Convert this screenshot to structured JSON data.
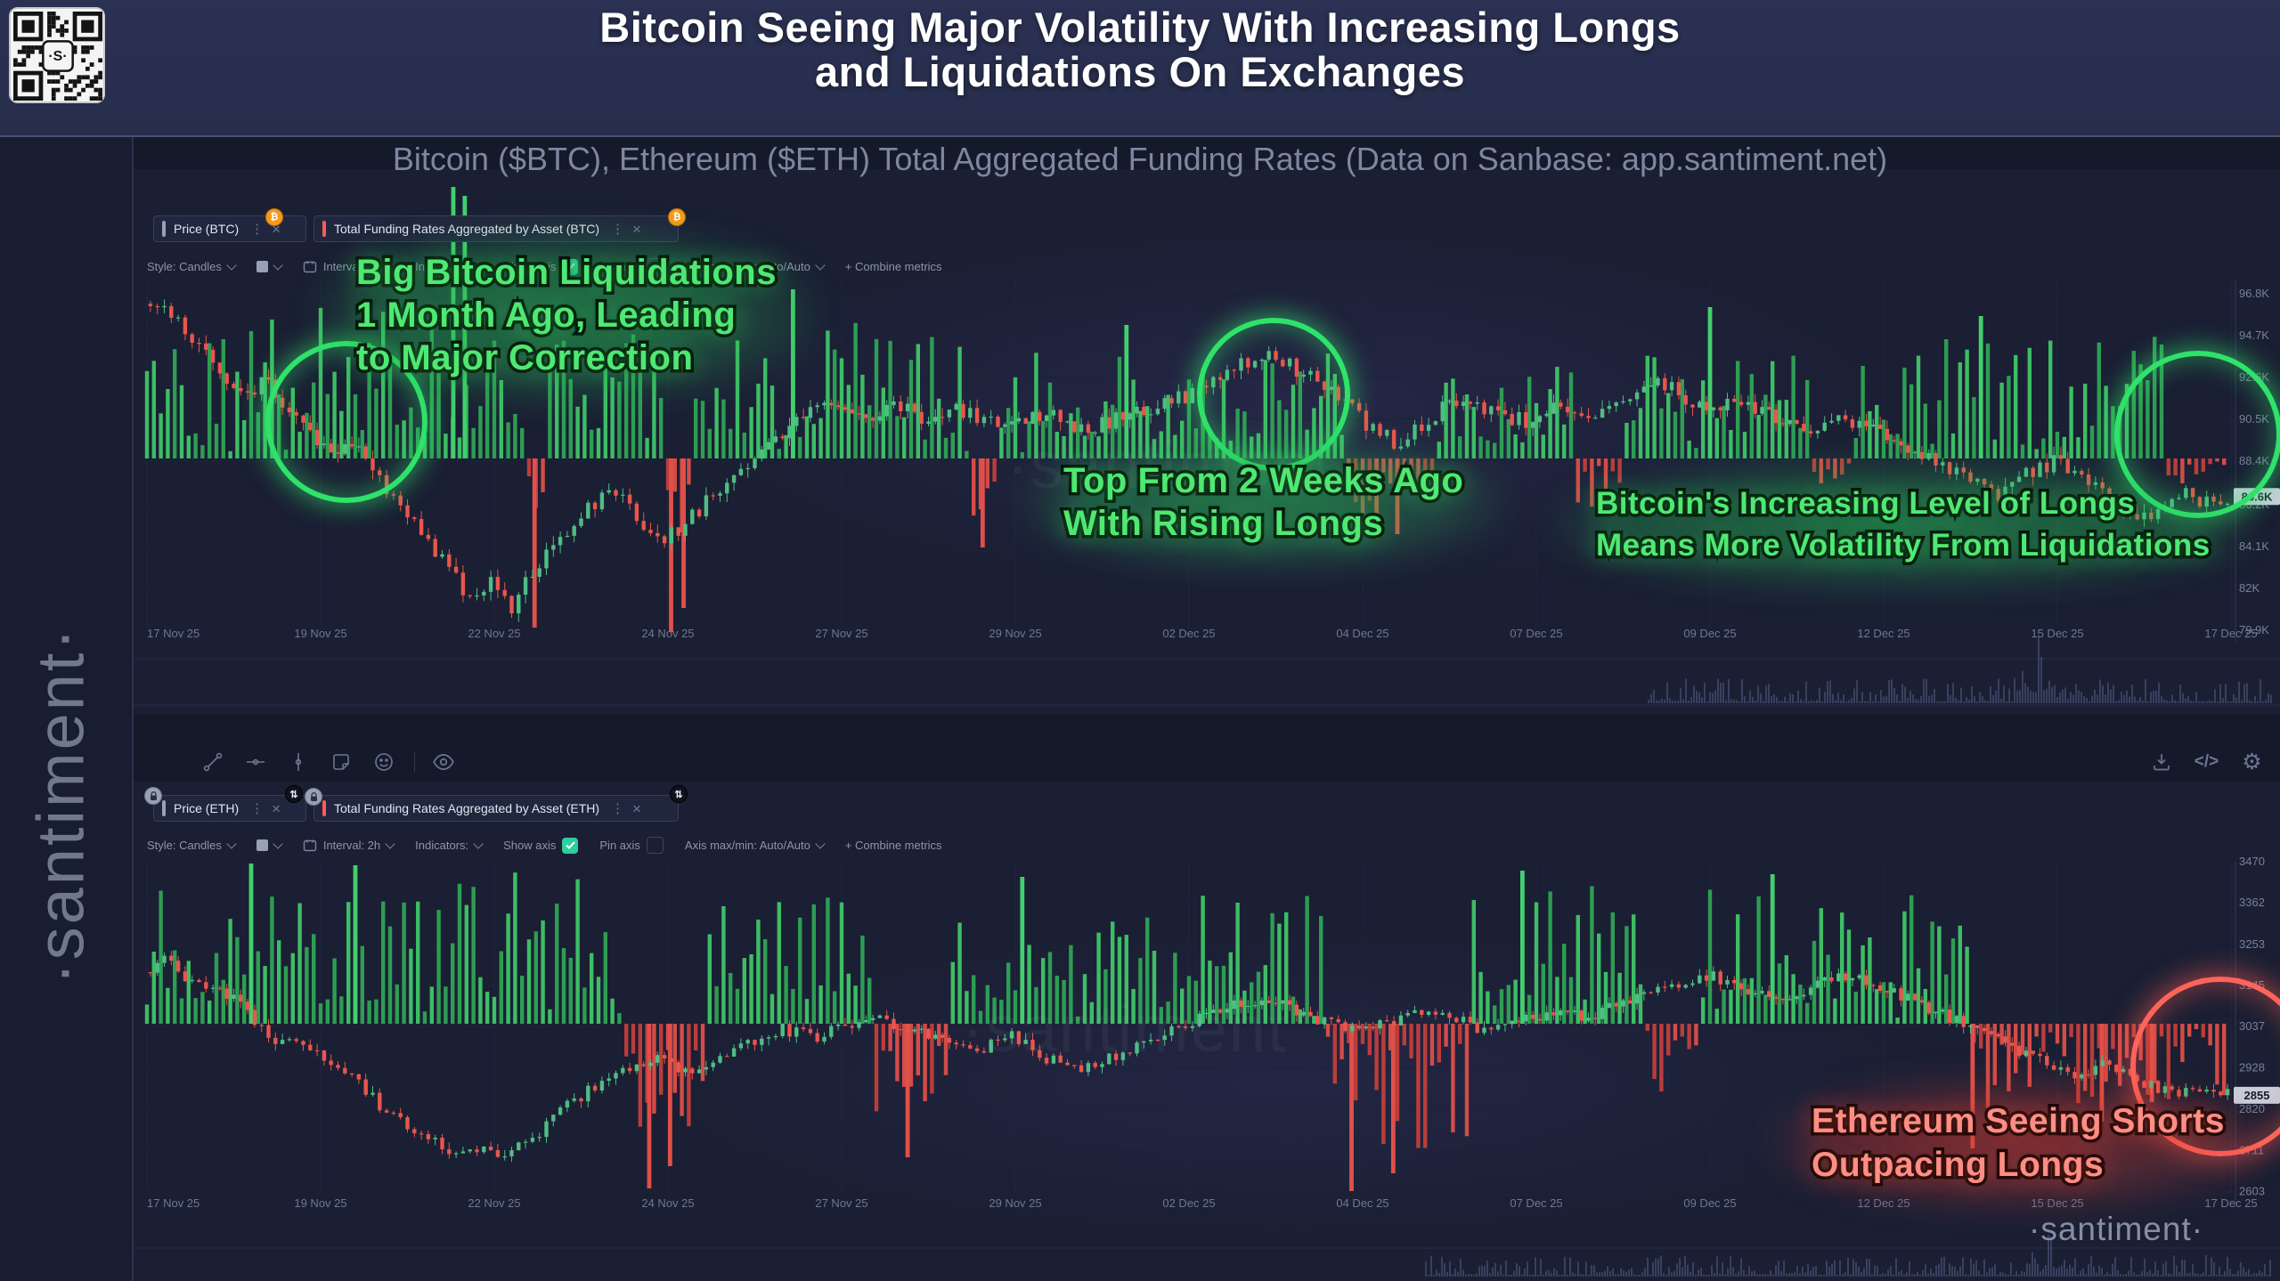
{
  "header": {
    "title_line1": "Bitcoin Seeing Major Volatility With Increasing Longs",
    "title_line2": "and Liquidations On Exchanges",
    "subtitle": "Bitcoin ($BTC), Ethereum ($ETH) Total Aggregated Funding Rates (Data on Sanbase: app.santiment.net)"
  },
  "branding": {
    "sidebar_watermark": "·santiment·",
    "chart_watermark": "·santiment",
    "bottom_watermark": "·santiment·",
    "qr_logo_letter": "S"
  },
  "toolbar": {
    "style": "Style: Candles",
    "interval": "Interval: 2h",
    "indicators": "Indicators:",
    "show_axis": "Show axis",
    "pin_axis": "Pin axis",
    "axis_maxmin": "Axis max/min: Auto/Auto",
    "combine_metrics": "+ Combine metrics"
  },
  "colors": {
    "accent_green": "#2fe26a",
    "accent_red": "#ff645a",
    "candle_green": "#4fbd83",
    "candle_red": "#e8564c",
    "funding_green": "#3fc668",
    "funding_red": "#dd4f49",
    "tab_red_accent": "#ff5b5b",
    "tab_gray_accent": "#9aa0b5",
    "badge_orange": "#f5991c",
    "checkbox_green": "#2ece9d",
    "header_bg": "#272d4b",
    "panel_bg": "#1a1f33"
  },
  "chart_data": [
    {
      "id": "btc",
      "type": "candlestick-with-funding-bars",
      "asset": "Bitcoin (BTC)",
      "tabs": [
        {
          "label": "Price (BTC)"
        },
        {
          "label": "Total Funding Rates Aggregated by Asset (BTC)"
        }
      ],
      "current_price_label": "86.6K",
      "current_price_value": 86.6,
      "y_ticks": [
        "96.8K",
        "94.7K",
        "92.6K",
        "90.5K",
        "88.4K",
        "86.2K",
        "84.1K",
        "82K",
        "79.9K"
      ],
      "y_tick_values": [
        96.8,
        94.7,
        92.6,
        90.5,
        88.4,
        86.2,
        84.1,
        82,
        79.9
      ],
      "ylim": [
        79.9,
        96.8
      ],
      "x_dates": [
        "17 Nov 25",
        "19 Nov 25",
        "22 Nov 25",
        "24 Nov 25",
        "27 Nov 25",
        "29 Nov 25",
        "02 Dec 25",
        "04 Dec 25",
        "07 Dec 25",
        "09 Dec 25",
        "12 Dec 25",
        "15 Dec 25",
        "17 Dec 25"
      ],
      "price_keypoints": [
        [
          0,
          96.3
        ],
        [
          0.01,
          95.8
        ],
        [
          0.03,
          93.5
        ],
        [
          0.05,
          91.5
        ],
        [
          0.055,
          92.8
        ],
        [
          0.07,
          90.5
        ],
        [
          0.09,
          88.8
        ],
        [
          0.1,
          89.6
        ],
        [
          0.115,
          87.0
        ],
        [
          0.13,
          85.2
        ],
        [
          0.145,
          83.0
        ],
        [
          0.155,
          81.6
        ],
        [
          0.165,
          82.4
        ],
        [
          0.175,
          81.0
        ],
        [
          0.185,
          82.8
        ],
        [
          0.2,
          84.5
        ],
        [
          0.21,
          86.0
        ],
        [
          0.225,
          86.8
        ],
        [
          0.235,
          85.6
        ],
        [
          0.245,
          84.3
        ],
        [
          0.255,
          85.0
        ],
        [
          0.27,
          86.5
        ],
        [
          0.285,
          88.0
        ],
        [
          0.3,
          89.5
        ],
        [
          0.315,
          90.8
        ],
        [
          0.33,
          91.5
        ],
        [
          0.345,
          90.6
        ],
        [
          0.36,
          91.2
        ],
        [
          0.375,
          90.4
        ],
        [
          0.39,
          91.0
        ],
        [
          0.41,
          90.2
        ],
        [
          0.43,
          90.8
        ],
        [
          0.45,
          90.0
        ],
        [
          0.47,
          90.6
        ],
        [
          0.49,
          91.3
        ],
        [
          0.51,
          92.2
        ],
        [
          0.525,
          93.2
        ],
        [
          0.54,
          93.6
        ],
        [
          0.555,
          92.8
        ],
        [
          0.57,
          91.8
        ],
        [
          0.585,
          90.3
        ],
        [
          0.6,
          89.2
        ],
        [
          0.615,
          90.5
        ],
        [
          0.63,
          91.6
        ],
        [
          0.645,
          91.0
        ],
        [
          0.66,
          90.4
        ],
        [
          0.675,
          91.0
        ],
        [
          0.69,
          90.2
        ],
        [
          0.705,
          91.2
        ],
        [
          0.72,
          92.6
        ],
        [
          0.735,
          91.8
        ],
        [
          0.75,
          90.8
        ],
        [
          0.765,
          91.4
        ],
        [
          0.78,
          90.6
        ],
        [
          0.8,
          90.0
        ],
        [
          0.815,
          90.6
        ],
        [
          0.83,
          89.8
        ],
        [
          0.845,
          89.0
        ],
        [
          0.86,
          88.2
        ],
        [
          0.875,
          87.4
        ],
        [
          0.89,
          86.6
        ],
        [
          0.9,
          87.6
        ],
        [
          0.915,
          88.4
        ],
        [
          0.93,
          87.6
        ],
        [
          0.945,
          86.4
        ],
        [
          0.955,
          85.2
        ],
        [
          0.965,
          86.0
        ],
        [
          0.975,
          86.8
        ],
        [
          0.985,
          86.4
        ],
        [
          1,
          86.6
        ]
      ],
      "funding_segments": [
        [
          0,
          0.145,
          1,
          170
        ],
        [
          0.145,
          0.183,
          1,
          150
        ],
        [
          0.183,
          0.192,
          -1,
          100
        ],
        [
          0.192,
          0.248,
          1,
          150
        ],
        [
          0.248,
          0.263,
          -1,
          120
        ],
        [
          0.263,
          0.395,
          1,
          155
        ],
        [
          0.395,
          0.407,
          -1,
          95
        ],
        [
          0.407,
          0.575,
          1,
          120
        ],
        [
          0.575,
          0.618,
          -1,
          75
        ],
        [
          0.618,
          0.685,
          1,
          110
        ],
        [
          0.685,
          0.71,
          -1,
          55
        ],
        [
          0.71,
          0.8,
          1,
          130
        ],
        [
          0.8,
          0.818,
          -1,
          45
        ],
        [
          0.818,
          0.97,
          1,
          140
        ],
        [
          0.97,
          1,
          -1,
          40
        ]
      ],
      "funding_spikes": [
        [
          0.147,
          305,
          1
        ],
        [
          0.1525,
          295,
          1
        ],
        [
          0.186,
          190,
          -1
        ],
        [
          0.2515,
          195,
          -1
        ],
        [
          0.2575,
          168,
          -1
        ],
        [
          0.401,
          100,
          -1
        ],
        [
          0.59,
          90,
          -1
        ],
        [
          0.6,
          85,
          -1
        ],
        [
          0.31,
          190,
          1
        ],
        [
          0.47,
          150,
          1
        ],
        [
          0.75,
          170,
          1
        ],
        [
          0.88,
          160,
          1
        ]
      ],
      "annotations": [
        {
          "color": "green",
          "lines": [
            "Big Bitcoin Liquidations",
            "1 Month Ago, Leading",
            "to Major Correction"
          ]
        },
        {
          "color": "green",
          "lines": [
            "Top From 2 Weeks Ago",
            "With Rising Longs"
          ]
        },
        {
          "color": "green",
          "lines": [
            "Bitcoin's Increasing Level of Longs",
            "Means More Volatility From Liquidations"
          ]
        }
      ]
    },
    {
      "id": "eth",
      "type": "candlestick-with-funding-bars",
      "asset": "Ethereum (ETH)",
      "tabs": [
        {
          "label": "Price (ETH)"
        },
        {
          "label": "Total Funding Rates Aggregated by Asset (ETH)"
        }
      ],
      "current_price_label": "2855",
      "current_price_value": 2855,
      "y_ticks": [
        "3470",
        "3362",
        "3253",
        "3145",
        "3037",
        "2928",
        "2820",
        "2711",
        "2603"
      ],
      "y_tick_values": [
        3470,
        3362,
        3253,
        3145,
        3037,
        2928,
        2820,
        2711,
        2603
      ],
      "ylim": [
        2603,
        3470
      ],
      "x_dates": [
        "17 Nov 25",
        "19 Nov 25",
        "22 Nov 25",
        "24 Nov 25",
        "27 Nov 25",
        "29 Nov 25",
        "02 Dec 25",
        "04 Dec 25",
        "07 Dec 25",
        "09 Dec 25",
        "12 Dec 25",
        "15 Dec 25",
        "17 Dec 25"
      ],
      "price_keypoints": [
        [
          0,
          3180
        ],
        [
          0.01,
          3230
        ],
        [
          0.02,
          3150
        ],
        [
          0.04,
          3120
        ],
        [
          0.05,
          3060
        ],
        [
          0.06,
          2990
        ],
        [
          0.07,
          3010
        ],
        [
          0.085,
          2950
        ],
        [
          0.1,
          2900
        ],
        [
          0.11,
          2840
        ],
        [
          0.12,
          2790
        ],
        [
          0.135,
          2750
        ],
        [
          0.15,
          2700
        ],
        [
          0.16,
          2720
        ],
        [
          0.17,
          2690
        ],
        [
          0.185,
          2740
        ],
        [
          0.2,
          2820
        ],
        [
          0.215,
          2880
        ],
        [
          0.23,
          2920
        ],
        [
          0.245,
          2950
        ],
        [
          0.26,
          2920
        ],
        [
          0.275,
          2960
        ],
        [
          0.29,
          3000
        ],
        [
          0.305,
          3030
        ],
        [
          0.32,
          3010
        ],
        [
          0.335,
          3040
        ],
        [
          0.35,
          3060
        ],
        [
          0.365,
          3030
        ],
        [
          0.38,
          3000
        ],
        [
          0.4,
          2980
        ],
        [
          0.415,
          3010
        ],
        [
          0.43,
          2960
        ],
        [
          0.445,
          2920
        ],
        [
          0.46,
          2950
        ],
        [
          0.475,
          2990
        ],
        [
          0.49,
          3030
        ],
        [
          0.505,
          3060
        ],
        [
          0.52,
          3090
        ],
        [
          0.535,
          3110
        ],
        [
          0.55,
          3080
        ],
        [
          0.565,
          3050
        ],
        [
          0.58,
          3020
        ],
        [
          0.6,
          3050
        ],
        [
          0.615,
          3080
        ],
        [
          0.63,
          3050
        ],
        [
          0.645,
          3020
        ],
        [
          0.66,
          3050
        ],
        [
          0.675,
          3080
        ],
        [
          0.69,
          3060
        ],
        [
          0.705,
          3090
        ],
        [
          0.72,
          3120
        ],
        [
          0.735,
          3150
        ],
        [
          0.75,
          3170
        ],
        [
          0.765,
          3140
        ],
        [
          0.78,
          3110
        ],
        [
          0.8,
          3140
        ],
        [
          0.815,
          3170
        ],
        [
          0.83,
          3140
        ],
        [
          0.85,
          3100
        ],
        [
          0.865,
          3060
        ],
        [
          0.88,
          3020
        ],
        [
          0.895,
          2980
        ],
        [
          0.91,
          2940
        ],
        [
          0.925,
          2900
        ],
        [
          0.94,
          2940
        ],
        [
          0.955,
          2900
        ],
        [
          0.97,
          2860
        ],
        [
          0.985,
          2880
        ],
        [
          1,
          2855
        ]
      ],
      "funding_segments": [
        [
          0,
          0.228,
          1,
          172
        ],
        [
          0.228,
          0.268,
          -1,
          125
        ],
        [
          0.268,
          0.35,
          1,
          150
        ],
        [
          0.35,
          0.385,
          -1,
          105
        ],
        [
          0.385,
          0.565,
          1,
          148
        ],
        [
          0.565,
          0.635,
          -1,
          145
        ],
        [
          0.635,
          0.72,
          1,
          158
        ],
        [
          0.72,
          0.745,
          -1,
          85
        ],
        [
          0.745,
          0.875,
          1,
          155
        ],
        [
          0.875,
          1,
          -1,
          95
        ]
      ],
      "funding_spikes": [
        [
          0.241,
          185,
          -1
        ],
        [
          0.251,
          160,
          -1
        ],
        [
          0.365,
          150,
          -1
        ],
        [
          0.578,
          188,
          -1
        ],
        [
          0.598,
          168,
          -1
        ],
        [
          0.876,
          140,
          -1
        ],
        [
          0.938,
          110,
          -1
        ],
        [
          0.962,
          88,
          -1
        ],
        [
          0.05,
          180,
          1
        ],
        [
          0.1,
          178,
          1
        ],
        [
          0.42,
          165,
          1
        ],
        [
          0.66,
          172,
          1
        ],
        [
          0.78,
          168,
          1
        ]
      ],
      "annotations": [
        {
          "color": "red",
          "lines": [
            "Ethereum Seeing Shorts",
            "Outpacing Longs"
          ]
        }
      ]
    }
  ]
}
